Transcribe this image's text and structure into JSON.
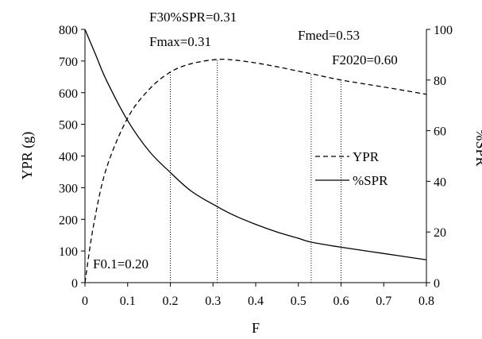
{
  "chart_data": {
    "type": "line",
    "title": "",
    "xlabel": "F",
    "ylabel": "YPR (g)",
    "y2label": "%SPR",
    "xlim": [
      0,
      0.8
    ],
    "ylim": [
      0,
      800
    ],
    "y2lim": [
      0,
      100
    ],
    "x_ticks": [
      "0",
      "0.1",
      "0.2",
      "0.3",
      "0.4",
      "0.5",
      "0.6",
      "0.7",
      "0.8"
    ],
    "y_ticks": [
      "0",
      "100",
      "200",
      "300",
      "400",
      "500",
      "600",
      "700",
      "800"
    ],
    "y2_ticks": [
      "0",
      "20",
      "40",
      "60",
      "80",
      "100"
    ],
    "grid": false,
    "legend_position": "right",
    "series": [
      {
        "name": "YPR",
        "axis": "left",
        "style": "dashed",
        "x": [
          0,
          0.02,
          0.05,
          0.1,
          0.15,
          0.2,
          0.25,
          0.31,
          0.35,
          0.4,
          0.45,
          0.5,
          0.53,
          0.6,
          0.7,
          0.8
        ],
        "y": [
          0,
          180,
          360,
          520,
          610,
          665,
          692,
          705,
          703,
          694,
          682,
          668,
          660,
          640,
          618,
          595
        ]
      },
      {
        "name": "%SPR",
        "axis": "right",
        "style": "solid",
        "x": [
          0,
          0.025,
          0.05,
          0.1,
          0.15,
          0.2,
          0.25,
          0.31,
          0.35,
          0.4,
          0.45,
          0.5,
          0.53,
          0.6,
          0.7,
          0.8
        ],
        "y": [
          100,
          90,
          80,
          64,
          52,
          43.5,
          36,
          30,
          26.5,
          23,
          20,
          17.5,
          16,
          14,
          11.5,
          9
        ]
      }
    ],
    "reference_lines": [
      {
        "x": 0.2,
        "ypr": 665
      },
      {
        "x": 0.31,
        "ypr": 705
      },
      {
        "x": 0.53,
        "ypr": 660
      },
      {
        "x": 0.6,
        "ypr": 640
      }
    ],
    "annotations": [
      {
        "label": "F0.1=0.20"
      },
      {
        "label": "F30%SPR=0.31"
      },
      {
        "label": "Fmax=0.31"
      },
      {
        "label": "Fmed=0.53"
      },
      {
        "label": "F2020=0.60"
      }
    ]
  }
}
